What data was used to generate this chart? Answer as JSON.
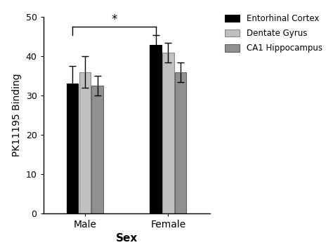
{
  "groups": [
    "Male",
    "Female"
  ],
  "series": [
    "Entorhinal Cortex",
    "Dentate Gyrus",
    "CA1 Hippocampus"
  ],
  "bar_colors": [
    "#000000",
    "#c0c0c0",
    "#909090"
  ],
  "bar_edge_colors": [
    "#000000",
    "#888888",
    "#606060"
  ],
  "values": {
    "Male": [
      33,
      36,
      32.5
    ],
    "Female": [
      43,
      41,
      36
    ]
  },
  "errors": {
    "Male": [
      4.5,
      4.0,
      2.5
    ],
    "Female": [
      2.5,
      2.5,
      2.5
    ]
  },
  "ylabel": "PK11195 Binding",
  "xlabel": "Sex",
  "ylim": [
    0,
    50
  ],
  "yticks": [
    0,
    10,
    20,
    30,
    40,
    50
  ],
  "bar_width": 0.18,
  "group_centers": [
    1.0,
    2.2
  ],
  "significance_label": "*",
  "background_color": "#ffffff",
  "legend_items": [
    {
      "label": "Entorhinal Cortex",
      "fc": "#000000",
      "ec": "#000000"
    },
    {
      "label": "Dentate Gyrus",
      "fc": "#c0c0c0",
      "ec": "#888888"
    },
    {
      "label": "CA1 Hippocampus",
      "fc": "#909090",
      "ec": "#606060"
    }
  ]
}
